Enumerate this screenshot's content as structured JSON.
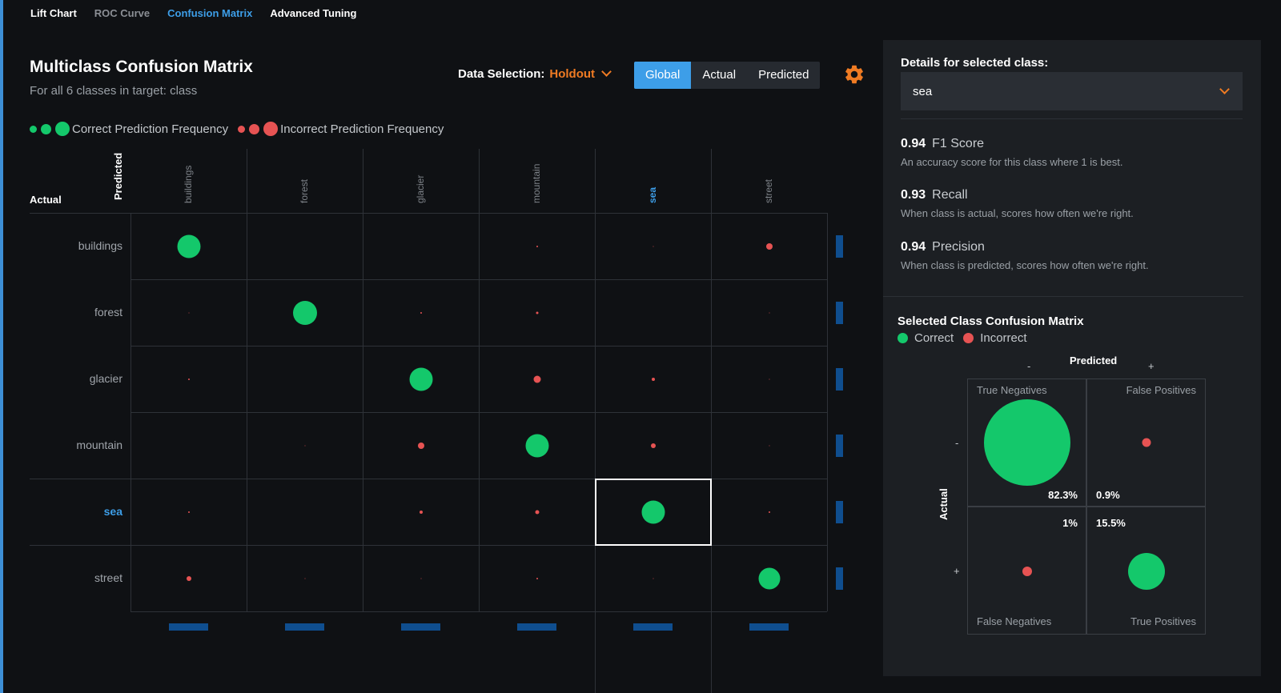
{
  "nav": {
    "tabs": [
      "Lift Chart",
      "ROC Curve",
      "Confusion Matrix",
      "Advanced Tuning"
    ],
    "active": "Confusion Matrix"
  },
  "header": {
    "title": "Multiclass Confusion Matrix",
    "subtitle": "For all 6 classes in target: class",
    "data_selection_label": "Data Selection:",
    "data_selection_value": "Holdout",
    "view_options": [
      "Global",
      "Actual",
      "Predicted"
    ],
    "view_selected": "Global",
    "settings_icon": "gear-icon"
  },
  "legend": {
    "correct": "Correct Prediction Frequency",
    "incorrect": "Incorrect Prediction Frequency"
  },
  "matrix": {
    "predicted_axis": "Predicted",
    "actual_axis": "Actual",
    "classes": [
      "buildings",
      "forest",
      "glacier",
      "mountain",
      "sea",
      "street"
    ],
    "selected_class": "sea",
    "bubble_sizes": [
      [
        29,
        0,
        0,
        2,
        1,
        8
      ],
      [
        1,
        30,
        2,
        3,
        0,
        1
      ],
      [
        2,
        0,
        29,
        9,
        4,
        1
      ],
      [
        0,
        1,
        8,
        29,
        6,
        1
      ],
      [
        2,
        0,
        4,
        5,
        29,
        2
      ],
      [
        6,
        1,
        1,
        2,
        1,
        27
      ]
    ],
    "colors": {
      "correct": "#14c86b",
      "incorrect": "#e65353",
      "accent": "#3d9ee8",
      "marginal_bar": "#0f4e8f"
    }
  },
  "details": {
    "label": "Details for selected class:",
    "selected": "sea",
    "metrics": [
      {
        "value": "0.94",
        "name": "F1 Score",
        "desc": "An accuracy score for this class where 1 is best."
      },
      {
        "value": "0.93",
        "name": "Recall",
        "desc": "When class is actual, scores how often we're right."
      },
      {
        "value": "0.94",
        "name": "Precision",
        "desc": "When class is predicted, scores how often we're right."
      }
    ]
  },
  "selected_matrix": {
    "title": "Selected Class Confusion Matrix",
    "legend_correct": "Correct",
    "legend_incorrect": "Incorrect",
    "predicted_label": "Predicted",
    "actual_label": "Actual",
    "minus": "-",
    "plus": "+",
    "cells": {
      "tn_label": "True Negatives",
      "tn_pct": "82.3%",
      "fp_label": "False Positives",
      "fp_pct": "0.9%",
      "fn_label": "False Negatives",
      "fn_pct": "1%",
      "tp_label": "True Positives",
      "tp_pct": "15.5%"
    }
  }
}
